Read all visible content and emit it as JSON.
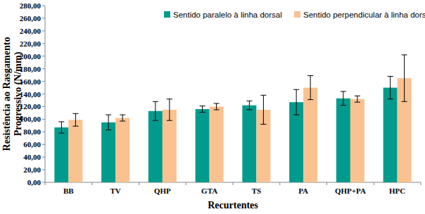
{
  "chart_data": {
    "type": "bar",
    "xlabel": "Recurtentes",
    "ylabel": [
      "Resistência ao Rasgamento",
      "Progressivo (N/mm)"
    ],
    "categories": [
      "BB",
      "TV",
      "QHP",
      "GTA",
      "TS",
      "PA",
      "QHP+PA",
      "HPC"
    ],
    "series": [
      {
        "name": "Sentido paralelo à linha dorsal",
        "color": "#009b8c",
        "values": [
          87,
          95,
          113,
          116,
          122,
          127,
          133,
          150
        ],
        "errors": [
          9,
          12,
          15,
          5,
          7,
          20,
          11,
          18
        ]
      },
      {
        "name": "Sentido perpendicular à linha dorsal",
        "color": "#fac291",
        "values": [
          99,
          102,
          115,
          120,
          115,
          150,
          132,
          165
        ],
        "errors": [
          10,
          5,
          17,
          5,
          23,
          19,
          5,
          37
        ]
      }
    ],
    "ylim": [
      0,
      280
    ],
    "yticks": [
      {
        "value": 0,
        "label": "0,00"
      },
      {
        "value": 20,
        "label": "20,00"
      },
      {
        "value": 40,
        "label": "40,00"
      },
      {
        "value": 60,
        "label": "60,00"
      },
      {
        "value": 80,
        "label": "80,00"
      },
      {
        "value": 100,
        "label": "100,00"
      },
      {
        "value": 120,
        "label": "120,00"
      },
      {
        "value": 140,
        "label": "140,00"
      },
      {
        "value": 160,
        "label": "160,00"
      },
      {
        "value": 180,
        "label": "180,00"
      },
      {
        "value": 200,
        "label": "200,00"
      },
      {
        "value": 220,
        "label": "220,00"
      },
      {
        "value": 240,
        "label": "240,00"
      },
      {
        "value": 260,
        "label": "260,00"
      },
      {
        "value": 280,
        "label": "280,00"
      }
    ],
    "grid": false,
    "legend": "top"
  }
}
